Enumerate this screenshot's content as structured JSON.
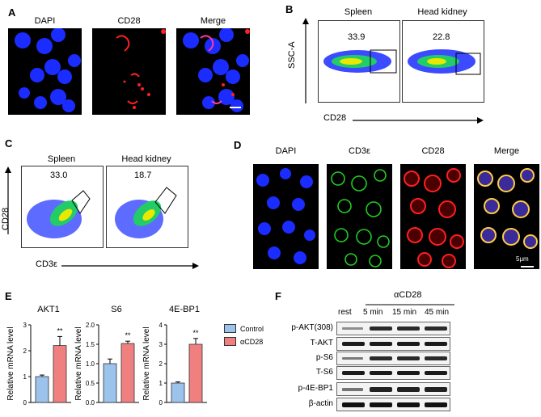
{
  "panels": {
    "A": {
      "letter": "A",
      "images": [
        "DAPI",
        "CD28",
        "Merge"
      ]
    },
    "B": {
      "letter": "B",
      "plots": [
        {
          "title": "Spleen",
          "value": "33.9"
        },
        {
          "title": "Head kidney",
          "value": "22.8"
        }
      ],
      "ylabel": "SSC-A",
      "xlabel": "CD28"
    },
    "C": {
      "letter": "C",
      "plots": [
        {
          "title": "Spleen",
          "value": "33.0"
        },
        {
          "title": "Head kidney",
          "value": "18.7"
        }
      ],
      "ylabel": "CD28",
      "xlabel": "CD3ε"
    },
    "D": {
      "letter": "D",
      "images": [
        "DAPI",
        "CD3ε",
        "CD28",
        "Merge"
      ],
      "scale_bar": "5μm"
    },
    "E": {
      "letter": "E"
    },
    "F": {
      "letter": "F",
      "group_label": "αCD28",
      "lanes": [
        "rest",
        "5 min",
        "15 min",
        "45 min"
      ],
      "rows": [
        "p-AKT(308)",
        "T-AKT",
        "p-S6",
        "T-S6",
        "p-4E-BP1",
        "β-actin"
      ]
    }
  },
  "colors": {
    "control": "#9cc3ec",
    "treated": "#f08080",
    "dapi": "#1a2cff",
    "cd28": "#ff1f1f",
    "cd3": "#22cc22"
  },
  "chart_data": [
    {
      "type": "bar",
      "title": "AKT1",
      "ylabel": "Relative mRNA level",
      "yticks": [
        "0",
        "1",
        "2",
        "3"
      ],
      "ylim": [
        0,
        3
      ],
      "series": [
        {
          "name": "Control",
          "values": [
            1.0
          ]
        },
        {
          "name": "αCD28",
          "values": [
            2.2
          ]
        }
      ],
      "errors": [
        0.06,
        0.35
      ],
      "significance": "**"
    },
    {
      "type": "bar",
      "title": "S6",
      "ylabel": "Relative mRNA level",
      "yticks": [
        "0.0",
        "0.5",
        "1.0",
        "1.5",
        "2.0"
      ],
      "ylim": [
        0,
        2
      ],
      "series": [
        {
          "name": "Control",
          "values": [
            1.0
          ]
        },
        {
          "name": "αCD28",
          "values": [
            1.52
          ]
        }
      ],
      "errors": [
        0.12,
        0.06
      ],
      "significance": "**"
    },
    {
      "type": "bar",
      "title": "4E-BP1",
      "ylabel": "Relative mRNA level",
      "yticks": [
        "0",
        "1",
        "2",
        "3",
        "4"
      ],
      "ylim": [
        0,
        4
      ],
      "series": [
        {
          "name": "Control",
          "values": [
            1.0
          ]
        },
        {
          "name": "αCD28",
          "values": [
            3.0
          ]
        }
      ],
      "errors": [
        0.06,
        0.3
      ],
      "significance": "**"
    }
  ],
  "legend": {
    "items": [
      "Control",
      "αCD28"
    ]
  }
}
